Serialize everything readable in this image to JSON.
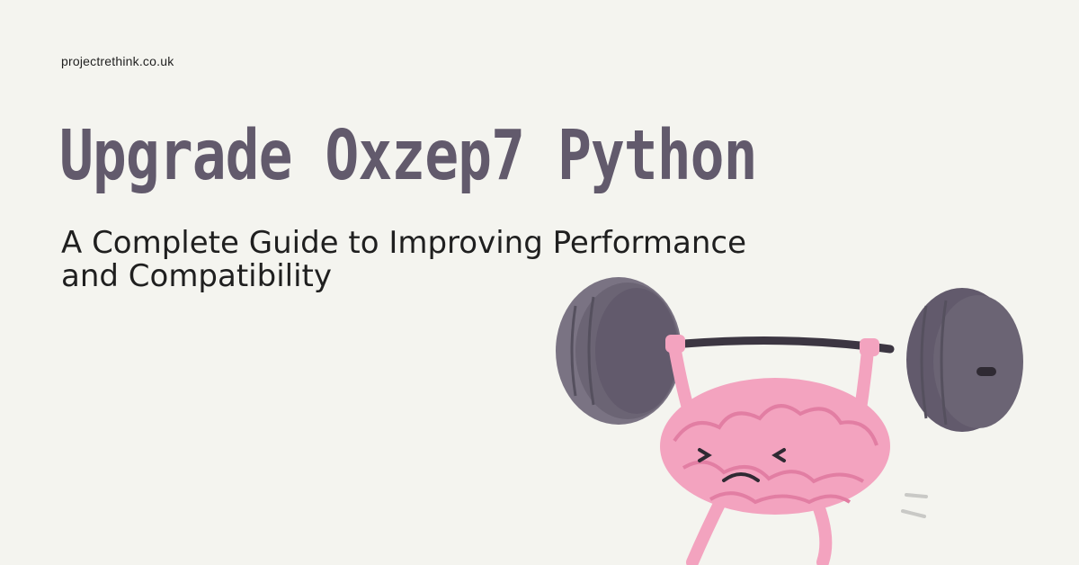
{
  "site": {
    "url": "projectrethink.co.uk"
  },
  "headline": {
    "title": "Upgrade Oxzep7 Python"
  },
  "subheadline": {
    "line1": "A Complete Guide to Improving Performance",
    "line2": "and Compatibility"
  },
  "illustration": {
    "icon": "brain-lifting-barbell-icon"
  },
  "colors": {
    "background": "#f4f4ef",
    "title": "#625a6c",
    "text": "#1f1f1f",
    "brain": "#f3a3bf",
    "weight": "#6b6474"
  }
}
